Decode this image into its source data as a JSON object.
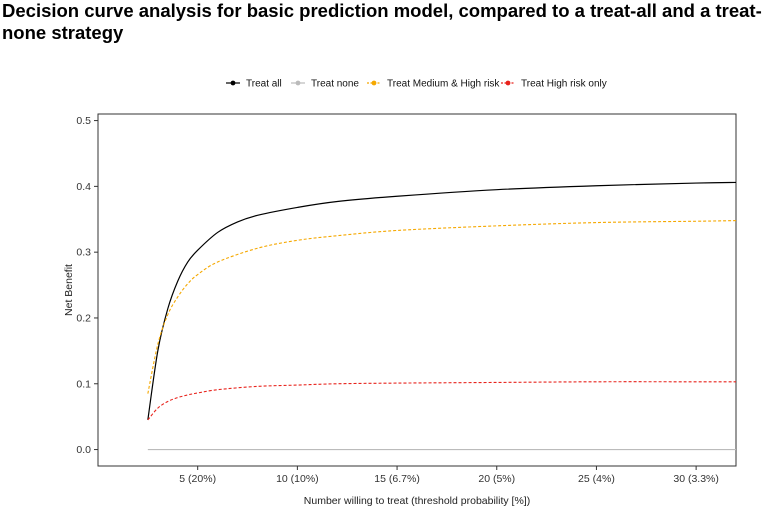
{
  "title": "Decision curve analysis for basic prediction model, compared to a treat-all and a treat-none strategy",
  "chart_data": {
    "type": "line",
    "title": "Decision curve analysis for basic prediction model, compared to a treat-all and a treat-none strategy",
    "xlabel": "Number willing to treat (threshold probability [%])",
    "ylabel": "Net Benefit",
    "xlim": [
      0,
      32
    ],
    "ylim": [
      -0.025,
      0.51
    ],
    "x_ticks": [
      5,
      10,
      15,
      20,
      25,
      30
    ],
    "x_tick_labels": [
      "5 (20%)",
      "10 (10%)",
      "15 (6.7%)",
      "20 (5%)",
      "25 (4%)",
      "30 (3.3%)"
    ],
    "y_ticks": [
      0.0,
      0.1,
      0.2,
      0.3,
      0.4,
      0.5
    ],
    "y_tick_labels": [
      "0.0",
      "0.1",
      "0.2",
      "0.3",
      "0.4",
      "0.5"
    ],
    "legend_position": "top",
    "series": [
      {
        "name": "Treat all",
        "color": "#000000",
        "dash": "solid",
        "x": [
          2.5,
          3,
          3.5,
          4,
          4.5,
          5,
          6,
          7,
          8,
          10,
          12,
          15,
          20,
          25,
          30,
          32
        ],
        "y": [
          0.045,
          0.15,
          0.214,
          0.256,
          0.285,
          0.303,
          0.33,
          0.346,
          0.356,
          0.368,
          0.377,
          0.385,
          0.395,
          0.401,
          0.405,
          0.406
        ]
      },
      {
        "name": "Treat none",
        "color": "#bbbbbb",
        "dash": "solid",
        "x": [
          2.5,
          32
        ],
        "y": [
          0.0,
          0.0
        ]
      },
      {
        "name": "Treat Medium & High risk",
        "color": "#f5a800",
        "dash": "dashed",
        "x": [
          2.5,
          3,
          3.5,
          4,
          4.5,
          5,
          6,
          8,
          10,
          12,
          15,
          20,
          25,
          30,
          32
        ],
        "y": [
          0.085,
          0.16,
          0.205,
          0.232,
          0.252,
          0.266,
          0.285,
          0.306,
          0.318,
          0.325,
          0.333,
          0.34,
          0.345,
          0.347,
          0.348
        ]
      },
      {
        "name": "Treat High risk only",
        "color": "#e8231c",
        "dash": "dashed",
        "x": [
          2.5,
          3,
          3.5,
          4,
          4.5,
          5,
          6,
          8,
          10,
          12,
          15,
          20,
          25,
          30,
          32
        ],
        "y": [
          0.045,
          0.063,
          0.073,
          0.079,
          0.083,
          0.086,
          0.091,
          0.096,
          0.098,
          0.1,
          0.101,
          0.102,
          0.103,
          0.103,
          0.103
        ]
      }
    ]
  }
}
